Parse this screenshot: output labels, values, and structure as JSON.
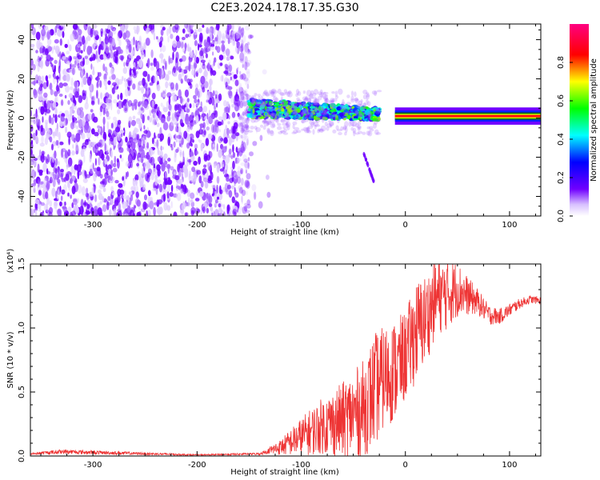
{
  "title": "C2E3.2024.178.17.35.G30",
  "chart_data": [
    {
      "type": "heatmap",
      "title": "C2E3.2024.178.17.35.G30",
      "xlabel": "Height of straight line (km)",
      "ylabel": "Frequency (Hz)",
      "xlim": [
        -360,
        130
      ],
      "ylim": [
        -50,
        48
      ],
      "x_ticks": [
        -300,
        -200,
        -100,
        0,
        100
      ],
      "y_ticks": [
        -40,
        -20,
        0,
        20,
        40
      ],
      "colorbar": {
        "label": "Normalized spectral amplitude",
        "range": [
          0.0,
          1.0
        ],
        "ticks": [
          0.0,
          0.2,
          0.4,
          0.6,
          0.8
        ],
        "colormap": [
          "#ffffff",
          "#7000ff",
          "#0000ff",
          "#00ffff",
          "#00ff00",
          "#ffff00",
          "#ff0000",
          "#ff0080"
        ]
      },
      "regions": [
        {
          "x_range": [
            -360,
            -150
          ],
          "freq_range": [
            -50,
            48
          ],
          "amplitude": 0.05
        },
        {
          "x_range": [
            -150,
            -25
          ],
          "freq_center_from": 5,
          "freq_center_to": 2,
          "bandwidth": 6,
          "amplitude": 0.45
        },
        {
          "x_range": [
            -40,
            -30
          ],
          "freq_range": [
            -33,
            -18
          ],
          "amplitude": 0.1
        },
        {
          "x_range": [
            -10,
            130
          ],
          "freq_center": 1,
          "bandwidth": 4,
          "amplitude": 0.85
        }
      ]
    },
    {
      "type": "line",
      "title": "",
      "xlabel": "Height of straight line (km)",
      "ylabel": "SNR (10 * v/v)",
      "y_multiplier": "(x10⁴)",
      "xlim": [
        -360,
        130
      ],
      "ylim": [
        0,
        1.5
      ],
      "x_ticks": [
        -300,
        -200,
        -100,
        0,
        100
      ],
      "y_ticks": [
        0.0,
        0.5,
        1.0,
        1.5
      ],
      "series": [
        {
          "color": "#ee3333",
          "envelope_x": [
            -360,
            -330,
            -200,
            -140,
            -120,
            -100,
            -80,
            -60,
            -40,
            -30,
            -20,
            -10,
            0,
            10,
            20,
            30,
            40,
            50,
            60,
            70,
            80,
            90,
            100,
            110,
            120,
            130
          ],
          "envelope_y": [
            0.02,
            0.04,
            0.01,
            0.02,
            0.08,
            0.18,
            0.28,
            0.34,
            0.45,
            0.6,
            0.7,
            0.75,
            0.85,
            1.05,
            1.15,
            1.3,
            1.32,
            1.35,
            1.28,
            1.22,
            1.12,
            1.1,
            1.15,
            1.2,
            1.23,
            1.22
          ],
          "noise_y": [
            0.015,
            0.02,
            0.008,
            0.015,
            0.06,
            0.15,
            0.22,
            0.3,
            0.38,
            0.45,
            0.4,
            0.4,
            0.35,
            0.4,
            0.35,
            0.3,
            0.28,
            0.22,
            0.15,
            0.1,
            0.08,
            0.06,
            0.05,
            0.04,
            0.03,
            0.03
          ]
        }
      ]
    }
  ]
}
